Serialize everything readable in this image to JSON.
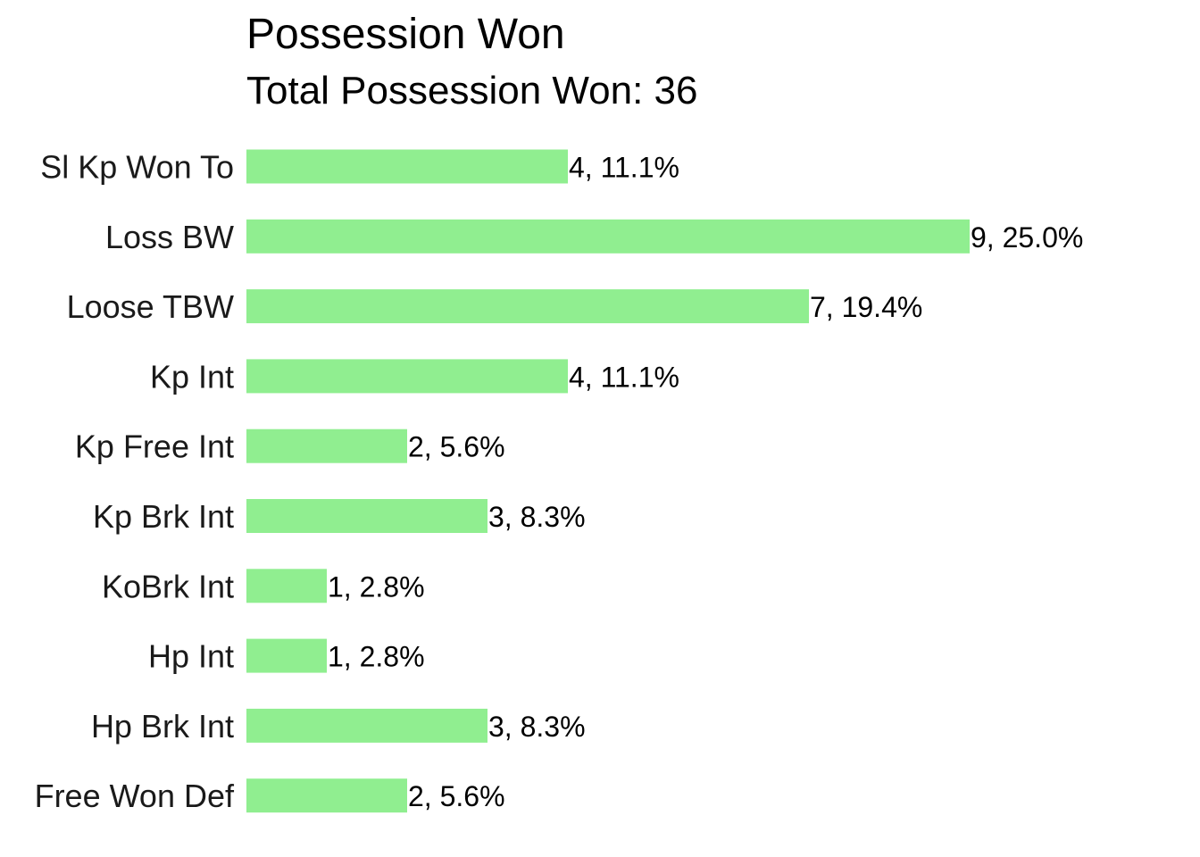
{
  "chart_data": {
    "type": "bar",
    "orientation": "horizontal",
    "title": "Possession Won",
    "subtitle": "Total Possession Won: 36",
    "categories": [
      "Sl Kp Won To",
      "Loss BW",
      "Loose TBW",
      "Kp Int",
      "Kp Free Int",
      "Kp Brk Int",
      "KoBrk Int",
      "Hp Int",
      "Hp Brk Int",
      "Free Won Def"
    ],
    "values": [
      4,
      9,
      7,
      4,
      2,
      3,
      1,
      1,
      3,
      2
    ],
    "data_labels": [
      "4, 11.1%",
      "9, 25.0%",
      "7, 19.4%",
      "4, 11.1%",
      "2, 5.6%",
      "3, 8.3%",
      "1, 2.8%",
      "1, 2.8%",
      "3, 8.3%",
      "2, 5.6%"
    ],
    "xlim": [
      0,
      9
    ],
    "grid": false,
    "bar_color": "#90EE90"
  }
}
